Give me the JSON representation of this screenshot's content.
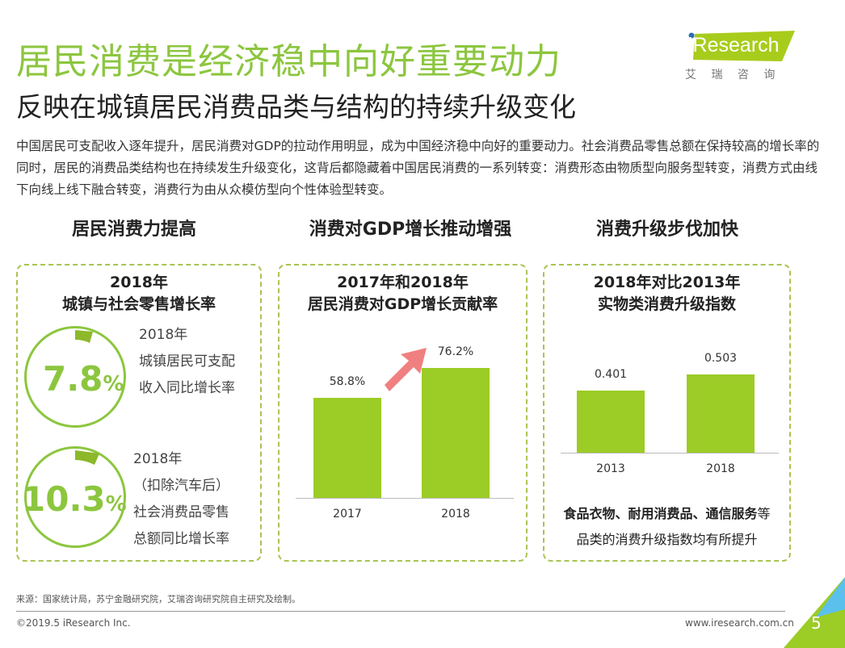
{
  "header": {
    "title": "居民消费是经济稳中向好重要动力",
    "subtitle": "反映在城镇居民消费品类与结构的持续升级变化",
    "logo_text": "iResearch",
    "logo_sub": "艾 瑞 咨 询"
  },
  "intro": "中国居民可支配收入逐年提升，居民消费对GDP的拉动作用明显，成为中国经济稳中向好的重要动力。社会消费品零售总额在保持较高的增长率的同时，居民的消费品类结构也在持续发生升级变化，这背后都隐藏着中国居民消费的一系列转变：消费形态由物质型向服务型转变，消费方式由线下向线上线下融合转变，消费行为由从众模仿型向个性体验型转变。",
  "sections": [
    {
      "heading": "居民消费力提高",
      "title1": "2018年",
      "title2": "城镇与社会零售增长率",
      "stats": [
        {
          "value": "7.8",
          "unit": "%",
          "lines": [
            "2018年",
            "城镇居民可支配",
            "收入同比增长率"
          ]
        },
        {
          "value": "10.3",
          "unit": "%",
          "lines": [
            "2018年",
            "（扣除汽车后）",
            "社会消费品零售",
            "总额同比增长率"
          ]
        }
      ]
    },
    {
      "heading": "消费对GDP增长推动增强",
      "title1": "2017年和2018年",
      "title2": "居民消费对GDP增长贡献率"
    },
    {
      "heading": "消费升级步伐加快",
      "title1": "2018年对比2013年",
      "title2": "实物类消费升级指数",
      "note_bold": "食品衣物、耐用消费品、通信服务",
      "note_rest": "等",
      "note2": "品类的消费升级指数均有所提升"
    }
  ],
  "chart_data": [
    {
      "type": "bar",
      "title": "2017年和2018年居民消费对GDP增长贡献率",
      "categories": [
        "2017",
        "2018"
      ],
      "values": [
        58.8,
        76.2
      ],
      "labels": [
        "58.8%",
        "76.2%"
      ],
      "ylim": [
        0,
        100
      ]
    },
    {
      "type": "bar",
      "title": "2018年对比2013年实物类消费升级指数",
      "categories": [
        "2013",
        "2018"
      ],
      "values": [
        0.401,
        0.503
      ],
      "labels": [
        "0.401",
        "0.503"
      ],
      "ylim": [
        0,
        0.8
      ]
    }
  ],
  "footer": {
    "source": "来源：国家统计局，苏宁金融研究院，艾瑞咨询研究院自主研究及绘制。",
    "copyright": "©2019.5 iResearch Inc.",
    "website": "www.iresearch.com.cn",
    "page": "5"
  },
  "colors": {
    "green": "#8cc63f",
    "bar": "#9ccc26",
    "arrow": "#f08080"
  }
}
